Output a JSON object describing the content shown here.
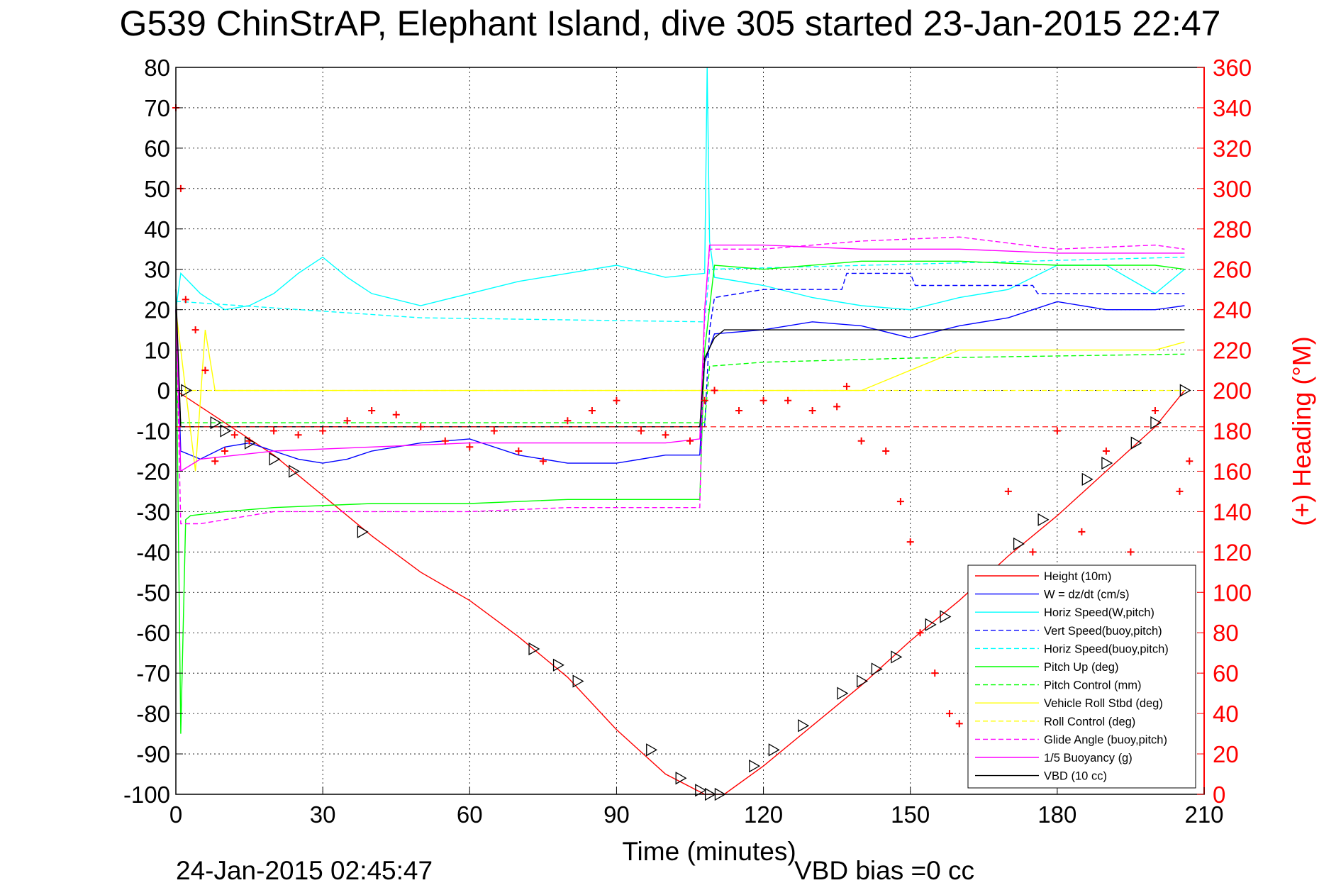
{
  "chart_data": {
    "type": "line",
    "title": "G539 ChinStrAP, Elephant Island, dive 305 started 23-Jan-2015 22:47",
    "xlabel": "Time (minutes)",
    "ylabel_right": "(+) Heading (°M)",
    "footer_left": "24-Jan-2015 02:45:47",
    "footer_right": "VBD bias =0 cc",
    "xlim": [
      0,
      210
    ],
    "ylim": [
      -100,
      80
    ],
    "ylim_right": [
      0,
      360
    ],
    "x_ticks": [
      "0",
      "30",
      "60",
      "90",
      "120",
      "150",
      "180",
      "210"
    ],
    "y_ticks": [
      "80",
      "70",
      "60",
      "50",
      "40",
      "30",
      "20",
      "10",
      "0",
      "-10",
      "-20",
      "-30",
      "-40",
      "-50",
      "-60",
      "-70",
      "-80",
      "-90",
      "-100"
    ],
    "y_ticks_right": [
      "360",
      "340",
      "320",
      "300",
      "280",
      "260",
      "240",
      "220",
      "200",
      "180",
      "160",
      "140",
      "120",
      "100",
      "80",
      "60",
      "40",
      "20",
      "0"
    ],
    "grid": true,
    "legend_position": "bottom-right",
    "legend": [
      {
        "label": "Height (10m)",
        "color": "#ff0000",
        "style": "solid"
      },
      {
        "label": "W = dz/dt (cm/s)",
        "color": "#0000ff",
        "style": "solid"
      },
      {
        "label": "Horiz Speed(W,pitch)",
        "color": "#00ffff",
        "style": "solid"
      },
      {
        "label": "Vert Speed(buoy,pitch)",
        "color": "#0000ff",
        "style": "dashed"
      },
      {
        "label": "Horiz Speed(buoy,pitch)",
        "color": "#00ffff",
        "style": "dashed"
      },
      {
        "label": "Pitch Up (deg)",
        "color": "#00ff00",
        "style": "solid"
      },
      {
        "label": "Pitch Control (mm)",
        "color": "#00ff00",
        "style": "dashed"
      },
      {
        "label": "Vehicle Roll Stbd (deg)",
        "color": "#ffff00",
        "style": "solid"
      },
      {
        "label": "Roll Control (deg)",
        "color": "#ffff00",
        "style": "dashed"
      },
      {
        "label": "Glide Angle (buoy,pitch)",
        "color": "#ff00ff",
        "style": "dashed"
      },
      {
        "label": "1/5 Buoyancy (g)",
        "color": "#ff00ff",
        "style": "solid"
      },
      {
        "label": "VBD (10 cc)",
        "color": "#000000",
        "style": "solid"
      }
    ],
    "series": [
      {
        "name": "Height (10m)",
        "axis": "left",
        "x": [
          0,
          10,
          20,
          30,
          40,
          50,
          60,
          70,
          80,
          90,
          100,
          108,
          112,
          120,
          130,
          140,
          150,
          160,
          170,
          180,
          190,
          200,
          206
        ],
        "y": [
          0,
          -8,
          -16,
          -26,
          -36,
          -45,
          -52,
          -61,
          -71,
          -84,
          -95,
          -100,
          -100,
          -93,
          -83,
          -73,
          -62,
          -52,
          -41,
          -31,
          -20,
          -9,
          0
        ]
      },
      {
        "name": "W = dz/dt (cm/s)",
        "axis": "left",
        "x": [
          0,
          1,
          5,
          10,
          15,
          20,
          25,
          30,
          35,
          40,
          50,
          60,
          70,
          80,
          90,
          100,
          107,
          108,
          110,
          120,
          130,
          140,
          150,
          160,
          170,
          180,
          190,
          200,
          206
        ],
        "y": [
          20,
          -15,
          -17,
          -14,
          -13,
          -15,
          -17,
          -18,
          -17,
          -15,
          -13,
          -12,
          -16,
          -18,
          -18,
          -16,
          -16,
          7,
          14,
          15,
          17,
          16,
          13,
          16,
          18,
          22,
          20,
          20,
          21
        ]
      },
      {
        "name": "Horiz Speed(W,pitch)",
        "axis": "left",
        "x": [
          0,
          1,
          5,
          10,
          15,
          20,
          25,
          30,
          35,
          40,
          50,
          60,
          70,
          80,
          90,
          100,
          108,
          108.5,
          109,
          110,
          120,
          130,
          140,
          150,
          160,
          170,
          180,
          190,
          200,
          206
        ],
        "y": [
          20,
          29,
          24,
          20,
          21,
          24,
          29,
          33,
          28,
          24,
          21,
          24,
          27,
          29,
          31,
          28,
          29,
          80,
          37,
          28,
          26,
          23,
          21,
          20,
          23,
          25,
          31,
          31,
          24,
          30
        ]
      },
      {
        "name": "Vert Speed(buoy,pitch)",
        "axis": "left",
        "x": [
          0,
          1,
          50,
          108,
          109,
          110,
          120,
          136,
          137,
          150,
          151,
          175,
          176,
          206
        ],
        "y": [
          20,
          -9,
          -9,
          -9,
          15,
          23,
          25,
          25,
          29,
          29,
          26,
          26,
          24,
          24
        ]
      },
      {
        "name": "Horiz Speed(buoy,pitch)",
        "axis": "left",
        "x": [
          0,
          1,
          50,
          108,
          109,
          206
        ],
        "y": [
          22,
          22,
          18,
          17,
          30,
          33
        ]
      },
      {
        "name": "Pitch Up (deg)",
        "axis": "left",
        "x": [
          0,
          1,
          2,
          3,
          10,
          20,
          40,
          60,
          80,
          100,
          107,
          108,
          110,
          120,
          140,
          160,
          180,
          200,
          206
        ],
        "y": [
          20,
          -85,
          -32,
          -31,
          -30,
          -29,
          -28,
          -28,
          -27,
          -27,
          -27,
          10,
          31,
          30,
          32,
          32,
          31,
          31,
          30
        ]
      },
      {
        "name": "Pitch Control (mm)",
        "axis": "left",
        "x": [
          0,
          1,
          108,
          109,
          120,
          150,
          206
        ],
        "y": [
          0,
          -8,
          -8,
          6,
          7,
          8,
          9
        ]
      },
      {
        "name": "Vehicle Roll Stbd (deg)",
        "axis": "left",
        "x": [
          0,
          1,
          4,
          6,
          8,
          10,
          20,
          40,
          60,
          80,
          100,
          108,
          110,
          120,
          140,
          160,
          180,
          200,
          206
        ],
        "y": [
          20,
          10,
          -20,
          15,
          0,
          0,
          0,
          0,
          0,
          0,
          0,
          0,
          0,
          0,
          0,
          10,
          10,
          10,
          12
        ]
      },
      {
        "name": "Roll Control (deg)",
        "axis": "left",
        "x": [
          0,
          1,
          10,
          50,
          100,
          108,
          110,
          150,
          206
        ],
        "y": [
          0,
          0,
          0,
          0,
          0,
          0,
          0,
          0,
          0
        ]
      },
      {
        "name": "Glide Angle (buoy,pitch)",
        "axis": "left",
        "x": [
          0,
          1,
          5,
          20,
          40,
          60,
          80,
          100,
          107,
          108,
          109,
          120,
          140,
          160,
          180,
          200,
          206
        ],
        "y": [
          20,
          -33,
          -33,
          -30,
          -30,
          -30,
          -29,
          -29,
          -29,
          20,
          35,
          35,
          37,
          38,
          35,
          36,
          35
        ]
      },
      {
        "name": "1/5 Buoyancy (g)",
        "axis": "left",
        "x": [
          0,
          1,
          5,
          20,
          40,
          60,
          80,
          100,
          107,
          108,
          109,
          120,
          140,
          160,
          180,
          206
        ],
        "y": [
          20,
          -20,
          -17,
          -15,
          -14,
          -13,
          -13,
          -13,
          -12,
          20,
          36,
          36,
          35,
          35,
          34,
          34
        ]
      },
      {
        "name": "VBD (10 cc)",
        "axis": "left",
        "x": [
          0,
          1,
          40,
          80,
          107,
          108,
          110,
          112,
          206
        ],
        "y": [
          25,
          -9,
          -9,
          -9,
          -9,
          8,
          13,
          15,
          15
        ]
      }
    ],
    "heading_points": {
      "axis": "right",
      "marker": "+",
      "color": "#ff0000",
      "x": [
        0,
        1,
        2,
        4,
        6,
        8,
        10,
        12,
        15,
        20,
        25,
        30,
        35,
        40,
        45,
        50,
        55,
        60,
        65,
        70,
        75,
        80,
        85,
        90,
        95,
        100,
        105,
        108,
        110,
        115,
        120,
        125,
        130,
        135,
        137,
        140,
        145,
        148,
        150,
        152,
        155,
        158,
        160,
        165,
        170,
        175,
        180,
        185,
        190,
        195,
        200,
        205,
        207
      ],
      "y": [
        340,
        300,
        245,
        230,
        210,
        165,
        170,
        178,
        175,
        180,
        178,
        180,
        185,
        190,
        188,
        182,
        175,
        172,
        180,
        170,
        165,
        185,
        190,
        195,
        180,
        178,
        175,
        195,
        200,
        190,
        195,
        195,
        190,
        192,
        202,
        175,
        170,
        145,
        125,
        80,
        60,
        40,
        35,
        80,
        150,
        120,
        180,
        130,
        170,
        120,
        190,
        150,
        165
      ]
    },
    "heading_reference": {
      "axis": "right",
      "value": 182,
      "color": "#ff0000",
      "style": "dashed"
    },
    "height_markers": {
      "marker": "triangle-right",
      "color": "#000000",
      "x": [
        2,
        8,
        10,
        15,
        20,
        24,
        38,
        73,
        78,
        82,
        97,
        103,
        107,
        109,
        111,
        118,
        122,
        128,
        136,
        140,
        143,
        147,
        154,
        157,
        172,
        177,
        186,
        190,
        196,
        200,
        206
      ],
      "y": [
        0,
        -8,
        -10,
        -13,
        -17,
        -20,
        -35,
        -64,
        -68,
        -72,
        -89,
        -96,
        -99,
        -100,
        -100,
        -93,
        -89,
        -83,
        -75,
        -72,
        -69,
        -66,
        -58,
        -56,
        -38,
        -32,
        -22,
        -18,
        -13,
        -8,
        0
      ]
    }
  }
}
